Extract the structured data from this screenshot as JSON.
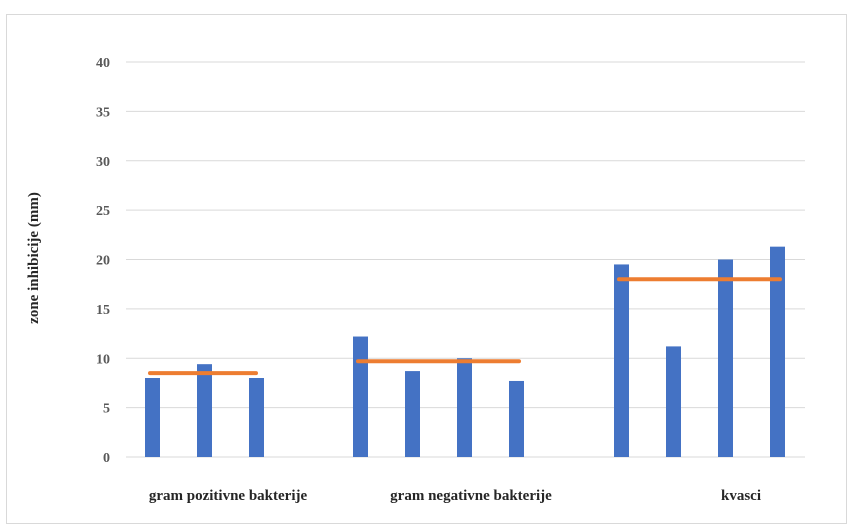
{
  "chart_data": {
    "type": "bar",
    "title": "",
    "xlabel": "",
    "ylabel": "zone inhibicije  (mm)",
    "ylim": [
      0,
      40
    ],
    "yticks": [
      0,
      5,
      10,
      15,
      20,
      25,
      30,
      35,
      40
    ],
    "grid": true,
    "legend": "none",
    "groups": [
      {
        "label": "gram pozitivne bakterije",
        "values": [
          8,
          9.4,
          8
        ],
        "mean": 8.5
      },
      {
        "label": "gram negativne bakterije",
        "values": [
          12.2,
          8.7,
          10,
          7.7
        ],
        "mean": 9.7
      },
      {
        "label": "kvasci",
        "values": [
          19.5,
          11.2,
          20,
          21.3
        ],
        "mean": 18
      }
    ],
    "colors": {
      "bar": "#4472c4",
      "mean_line": "#ed7d31",
      "grid": "#d9d9d9",
      "axis": "#d9d9d9"
    }
  }
}
